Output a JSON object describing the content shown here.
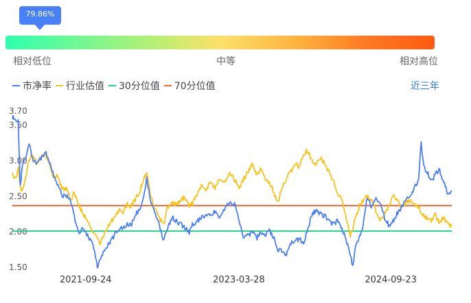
{
  "indicator": {
    "badge_value": "79.86%",
    "percentile": 0.7986,
    "labels": {
      "low": "相对低位",
      "mid": "中等",
      "high": "相对高位"
    }
  },
  "legend": [
    {
      "name": "市净率",
      "color": "#4b7ef0"
    },
    {
      "name": "行业估值",
      "color": "#f6c21b"
    },
    {
      "name": "30分位值",
      "color": "#1fd28a"
    },
    {
      "name": "70分位值",
      "color": "#f2682c"
    }
  ],
  "period_button": "近三年",
  "chart_data": {
    "type": "line",
    "title": "",
    "xlabel": "",
    "ylabel": "",
    "ylim": [
      1.5,
      3.7
    ],
    "y_ticks": [
      "3.70",
      "3.50",
      "3.00",
      "2.50",
      "2.00",
      "1.50"
    ],
    "y_tick_values": [
      3.7,
      3.5,
      3.0,
      2.5,
      2.0,
      1.5
    ],
    "x_range": [
      "2021-01-04",
      "2025-04-30"
    ],
    "x_ticks": [
      "2021-09-24",
      "2023-03-28",
      "2024-09-23"
    ],
    "grid": false,
    "series": [
      {
        "name": "市净率",
        "color": "#4b7ef0",
        "points": [
          [
            "2021-01-04",
            3.62
          ],
          [
            "2021-01-15",
            3.55
          ],
          [
            "2021-01-25",
            3.6
          ],
          [
            "2021-02-01",
            2.65
          ],
          [
            "2021-02-10",
            2.95
          ],
          [
            "2021-02-20",
            3.05
          ],
          [
            "2021-03-05",
            3.25
          ],
          [
            "2021-03-20",
            3.0
          ],
          [
            "2021-04-05",
            2.95
          ],
          [
            "2021-04-20",
            3.05
          ],
          [
            "2021-05-05",
            3.1
          ],
          [
            "2021-05-20",
            2.95
          ],
          [
            "2021-06-05",
            2.75
          ],
          [
            "2021-06-20",
            2.6
          ],
          [
            "2021-07-05",
            2.5
          ],
          [
            "2021-07-20",
            2.52
          ],
          [
            "2021-08-05",
            2.4
          ],
          [
            "2021-08-20",
            2.1
          ],
          [
            "2021-09-01",
            1.97
          ],
          [
            "2021-09-15",
            2.05
          ],
          [
            "2021-10-01",
            1.95
          ],
          [
            "2021-10-20",
            1.85
          ],
          [
            "2021-11-05",
            1.52
          ],
          [
            "2021-11-20",
            1.65
          ],
          [
            "2021-12-05",
            1.78
          ],
          [
            "2021-12-20",
            1.85
          ],
          [
            "2022-01-05",
            1.95
          ],
          [
            "2022-01-20",
            2.05
          ],
          [
            "2022-02-05",
            2.05
          ],
          [
            "2022-02-20",
            2.12
          ],
          [
            "2022-03-05",
            2.08
          ],
          [
            "2022-03-20",
            2.25
          ],
          [
            "2022-04-05",
            2.3
          ],
          [
            "2022-04-20",
            2.5
          ],
          [
            "2022-05-01",
            2.75
          ],
          [
            "2022-05-15",
            2.45
          ],
          [
            "2022-06-01",
            2.25
          ],
          [
            "2022-06-15",
            2.1
          ],
          [
            "2022-07-01",
            1.88
          ],
          [
            "2022-07-15",
            2.05
          ],
          [
            "2022-08-01",
            2.2
          ],
          [
            "2022-08-15",
            2.15
          ],
          [
            "2022-09-01",
            2.1
          ],
          [
            "2022-09-15",
            2.05
          ],
          [
            "2022-10-01",
            2.0
          ],
          [
            "2022-10-15",
            2.12
          ],
          [
            "2022-11-01",
            2.15
          ],
          [
            "2022-11-15",
            2.2
          ],
          [
            "2022-12-01",
            2.25
          ],
          [
            "2022-12-15",
            2.22
          ],
          [
            "2023-01-01",
            2.28
          ],
          [
            "2023-01-15",
            2.2
          ],
          [
            "2023-02-01",
            2.3
          ],
          [
            "2023-02-15",
            2.38
          ],
          [
            "2023-03-01",
            2.4
          ],
          [
            "2023-03-15",
            2.38
          ],
          [
            "2023-04-01",
            2.1
          ],
          [
            "2023-04-15",
            1.92
          ],
          [
            "2023-05-01",
            1.95
          ],
          [
            "2023-05-15",
            2.0
          ],
          [
            "2023-06-01",
            1.92
          ],
          [
            "2023-06-15",
            2.0
          ],
          [
            "2023-07-01",
            1.95
          ],
          [
            "2023-07-15",
            2.02
          ],
          [
            "2023-08-01",
            1.9
          ],
          [
            "2023-08-15",
            1.75
          ],
          [
            "2023-09-01",
            1.72
          ],
          [
            "2023-09-15",
            1.68
          ],
          [
            "2023-10-01",
            1.85
          ],
          [
            "2023-10-15",
            1.88
          ],
          [
            "2023-11-01",
            1.9
          ],
          [
            "2023-11-15",
            1.85
          ],
          [
            "2023-12-01",
            2.05
          ],
          [
            "2023-12-15",
            2.25
          ],
          [
            "2024-01-01",
            2.3
          ],
          [
            "2024-01-15",
            2.25
          ],
          [
            "2024-02-01",
            2.22
          ],
          [
            "2024-02-15",
            2.15
          ],
          [
            "2024-03-01",
            2.1
          ],
          [
            "2024-03-15",
            2.15
          ],
          [
            "2024-04-01",
            2.05
          ],
          [
            "2024-04-15",
            1.9
          ],
          [
            "2024-05-01",
            1.65
          ],
          [
            "2024-05-10",
            1.52
          ],
          [
            "2024-05-20",
            1.8
          ],
          [
            "2024-06-01",
            1.9
          ],
          [
            "2024-06-15",
            2.05
          ],
          [
            "2024-07-01",
            2.5
          ],
          [
            "2024-07-15",
            2.35
          ],
          [
            "2024-08-01",
            2.45
          ],
          [
            "2024-08-15",
            2.4
          ],
          [
            "2024-09-01",
            2.2
          ],
          [
            "2024-09-15",
            2.1
          ],
          [
            "2024-10-01",
            2.15
          ],
          [
            "2024-10-15",
            2.25
          ],
          [
            "2024-11-01",
            2.35
          ],
          [
            "2024-11-15",
            2.45
          ],
          [
            "2024-12-01",
            2.5
          ],
          [
            "2024-12-15",
            2.6
          ],
          [
            "2025-01-01",
            2.75
          ],
          [
            "2025-01-10",
            3.25
          ],
          [
            "2025-01-20",
            2.9
          ],
          [
            "2025-02-01",
            2.85
          ],
          [
            "2025-02-15",
            2.7
          ],
          [
            "2025-03-01",
            2.8
          ],
          [
            "2025-03-15",
            2.88
          ],
          [
            "2025-04-01",
            2.72
          ],
          [
            "2025-04-15",
            2.55
          ],
          [
            "2025-04-30",
            2.58
          ]
        ]
      },
      {
        "name": "行业估值",
        "color": "#f6c21b",
        "points": [
          [
            "2021-01-04",
            2.8
          ],
          [
            "2021-01-15",
            2.75
          ],
          [
            "2021-01-25",
            2.9
          ],
          [
            "2021-02-05",
            2.55
          ],
          [
            "2021-02-15",
            2.65
          ],
          [
            "2021-03-01",
            2.95
          ],
          [
            "2021-03-15",
            3.1
          ],
          [
            "2021-04-01",
            2.95
          ],
          [
            "2021-04-15",
            3.05
          ],
          [
            "2021-05-01",
            3.1
          ],
          [
            "2021-05-15",
            2.95
          ],
          [
            "2021-06-01",
            2.75
          ],
          [
            "2021-06-15",
            2.78
          ],
          [
            "2021-07-01",
            2.6
          ],
          [
            "2021-07-15",
            2.62
          ],
          [
            "2021-08-01",
            2.45
          ],
          [
            "2021-08-15",
            2.55
          ],
          [
            "2021-09-01",
            2.35
          ],
          [
            "2021-09-15",
            2.25
          ],
          [
            "2021-10-01",
            2.15
          ],
          [
            "2021-10-15",
            2.05
          ],
          [
            "2021-11-01",
            1.95
          ],
          [
            "2021-11-15",
            1.82
          ],
          [
            "2021-12-01",
            1.98
          ],
          [
            "2021-12-15",
            2.1
          ],
          [
            "2022-01-05",
            2.2
          ],
          [
            "2022-01-20",
            2.3
          ],
          [
            "2022-02-05",
            2.25
          ],
          [
            "2022-02-20",
            2.4
          ],
          [
            "2022-03-05",
            2.35
          ],
          [
            "2022-03-20",
            2.45
          ],
          [
            "2022-04-05",
            2.55
          ],
          [
            "2022-04-20",
            2.75
          ],
          [
            "2022-05-01",
            2.85
          ],
          [
            "2022-05-15",
            2.5
          ],
          [
            "2022-06-01",
            2.3
          ],
          [
            "2022-06-15",
            2.2
          ],
          [
            "2022-07-01",
            2.1
          ],
          [
            "2022-07-15",
            2.35
          ],
          [
            "2022-08-01",
            2.42
          ],
          [
            "2022-08-15",
            2.38
          ],
          [
            "2022-09-01",
            2.45
          ],
          [
            "2022-09-15",
            2.48
          ],
          [
            "2022-10-01",
            2.35
          ],
          [
            "2022-10-15",
            2.42
          ],
          [
            "2022-11-01",
            2.55
          ],
          [
            "2022-11-15",
            2.65
          ],
          [
            "2022-12-01",
            2.6
          ],
          [
            "2022-12-15",
            2.7
          ],
          [
            "2023-01-01",
            2.62
          ],
          [
            "2023-01-15",
            2.72
          ],
          [
            "2023-02-01",
            2.68
          ],
          [
            "2023-02-15",
            2.78
          ],
          [
            "2023-03-01",
            2.82
          ],
          [
            "2023-03-15",
            2.72
          ],
          [
            "2023-04-01",
            2.62
          ],
          [
            "2023-04-15",
            2.75
          ],
          [
            "2023-05-01",
            2.85
          ],
          [
            "2023-05-15",
            2.95
          ],
          [
            "2023-06-01",
            2.8
          ],
          [
            "2023-06-15",
            2.9
          ],
          [
            "2023-07-01",
            2.75
          ],
          [
            "2023-07-15",
            2.7
          ],
          [
            "2023-08-01",
            2.55
          ],
          [
            "2023-08-15",
            2.4
          ],
          [
            "2023-09-01",
            2.65
          ],
          [
            "2023-09-15",
            2.75
          ],
          [
            "2023-10-01",
            2.85
          ],
          [
            "2023-10-15",
            2.95
          ],
          [
            "2023-11-01",
            2.92
          ],
          [
            "2023-11-15",
            3.1
          ],
          [
            "2023-12-01",
            3.15
          ],
          [
            "2023-12-15",
            3.0
          ],
          [
            "2024-01-01",
            2.95
          ],
          [
            "2024-01-15",
            3.05
          ],
          [
            "2024-02-01",
            2.95
          ],
          [
            "2024-02-15",
            2.85
          ],
          [
            "2024-03-01",
            2.7
          ],
          [
            "2024-03-15",
            2.55
          ],
          [
            "2024-04-01",
            2.45
          ],
          [
            "2024-04-15",
            2.2
          ],
          [
            "2024-05-01",
            1.95
          ],
          [
            "2024-05-10",
            2.05
          ],
          [
            "2024-05-20",
            2.2
          ],
          [
            "2024-06-01",
            2.35
          ],
          [
            "2024-06-15",
            2.45
          ],
          [
            "2024-07-01",
            2.5
          ],
          [
            "2024-07-15",
            2.45
          ],
          [
            "2024-08-01",
            2.3
          ],
          [
            "2024-08-15",
            2.15
          ],
          [
            "2024-09-01",
            2.25
          ],
          [
            "2024-09-15",
            2.35
          ],
          [
            "2024-10-01",
            2.5
          ],
          [
            "2024-10-15",
            2.45
          ],
          [
            "2024-11-01",
            2.35
          ],
          [
            "2024-11-15",
            2.4
          ],
          [
            "2024-12-01",
            2.45
          ],
          [
            "2024-12-15",
            2.4
          ],
          [
            "2025-01-01",
            2.35
          ],
          [
            "2025-01-15",
            2.25
          ],
          [
            "2025-02-01",
            2.2
          ],
          [
            "2025-02-15",
            2.15
          ],
          [
            "2025-03-01",
            2.25
          ],
          [
            "2025-03-15",
            2.15
          ],
          [
            "2025-04-01",
            2.2
          ],
          [
            "2025-04-15",
            2.12
          ],
          [
            "2025-04-30",
            2.08
          ]
        ]
      }
    ],
    "reference_lines": [
      {
        "name": "30分位值",
        "value": 2.01,
        "color": "#1fd28a"
      },
      {
        "name": "70分位值",
        "value": 2.37,
        "color": "#f2682c"
      }
    ]
  }
}
